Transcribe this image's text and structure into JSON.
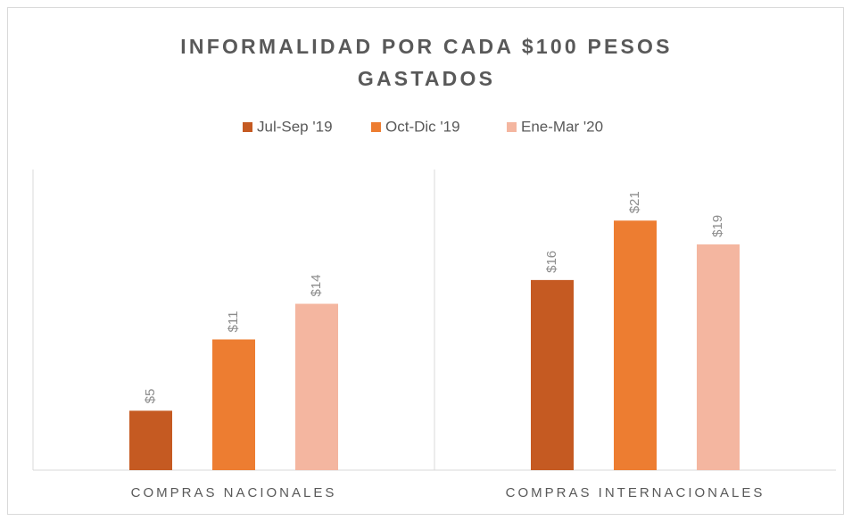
{
  "chart_data": {
    "type": "bar",
    "title": "INFORMALIDAD POR CADA $100 PESOS GASTADOS",
    "categories": [
      "COMPRAS NACIONALES",
      "COMPRAS INTERNACIONALES"
    ],
    "series": [
      {
        "name": "Jul-Sep '19",
        "color": "#c55a22",
        "values": [
          5,
          16
        ],
        "value_labels": [
          "$5",
          "$16"
        ]
      },
      {
        "name": "Oct-Dic '19",
        "color": "#ed7d31",
        "values": [
          11,
          21
        ],
        "value_labels": [
          "$11",
          "$21"
        ]
      },
      {
        "name": "Ene-Mar '20",
        "color": "#f4b6a0",
        "values": [
          14,
          19
        ],
        "value_labels": [
          "$14",
          "$19"
        ]
      }
    ],
    "ylim": [
      0,
      25
    ],
    "legend": "top"
  }
}
